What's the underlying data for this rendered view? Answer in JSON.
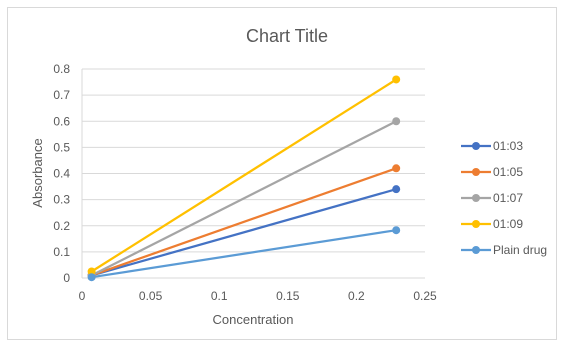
{
  "chart_data": {
    "type": "line",
    "title": "Chart Title",
    "xlabel": "Concentration",
    "ylabel": "Absorbance",
    "xlim": [
      0,
      0.25
    ],
    "ylim": [
      0,
      0.8
    ],
    "x_ticks": [
      "0",
      "0.05",
      "0.1",
      "0.15",
      "0.2",
      "0.25"
    ],
    "y_ticks": [
      "0",
      "0.1",
      "0.2",
      "0.3",
      "0.4",
      "0.5",
      "0.6",
      "0.7",
      "0.8"
    ],
    "x": [
      0.007,
      0.229
    ],
    "grid": true,
    "legend_position": "right",
    "series": [
      {
        "name": "01:03",
        "color": "#4472c4",
        "values": [
          0.01,
          0.34
        ]
      },
      {
        "name": "01:05",
        "color": "#ed7d31",
        "values": [
          0.01,
          0.42
        ]
      },
      {
        "name": "01:07",
        "color": "#a5a5a5",
        "values": [
          0.01,
          0.6
        ]
      },
      {
        "name": "01:09",
        "color": "#ffc000",
        "values": [
          0.025,
          0.76
        ]
      },
      {
        "name": "Plain drug",
        "color": "#5b9bd5",
        "values": [
          0.003,
          0.183
        ]
      }
    ]
  }
}
